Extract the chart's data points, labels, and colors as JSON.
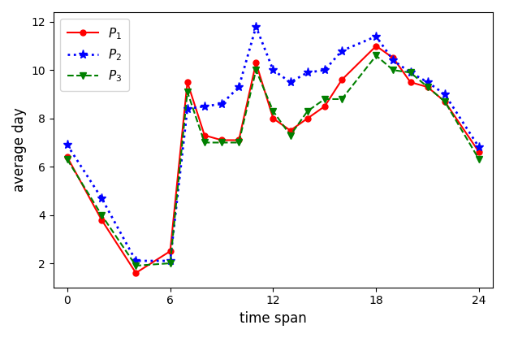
{
  "x": [
    0,
    2,
    4,
    6,
    7,
    8,
    9,
    10,
    11,
    12,
    13,
    14,
    15,
    16,
    18,
    19,
    20,
    21,
    22,
    24
  ],
  "P1": [
    6.4,
    3.8,
    1.6,
    2.5,
    9.5,
    7.3,
    7.1,
    7.1,
    10.3,
    8.0,
    7.5,
    8.0,
    8.5,
    9.6,
    11.0,
    10.5,
    9.5,
    9.3,
    8.7,
    6.6
  ],
  "P2": [
    6.9,
    4.7,
    2.1,
    2.1,
    8.4,
    8.5,
    8.6,
    9.3,
    11.8,
    10.0,
    9.5,
    9.9,
    10.0,
    10.8,
    11.4,
    10.4,
    9.9,
    9.5,
    9.0,
    6.8
  ],
  "P3": [
    6.3,
    4.0,
    1.9,
    2.0,
    9.1,
    7.0,
    7.0,
    7.0,
    10.0,
    8.3,
    7.3,
    8.3,
    8.8,
    8.8,
    10.6,
    10.0,
    9.9,
    9.3,
    8.7,
    6.3
  ],
  "P1_color": "red",
  "P2_color": "blue",
  "P3_color": "green",
  "xlabel": "time span",
  "ylabel": "average day",
  "xlim": [
    -0.8,
    24.8
  ],
  "ylim": [
    1.0,
    12.4
  ],
  "xticks": [
    0,
    6,
    12,
    18,
    24
  ],
  "yticks": [
    2,
    4,
    6,
    8,
    10,
    12
  ]
}
